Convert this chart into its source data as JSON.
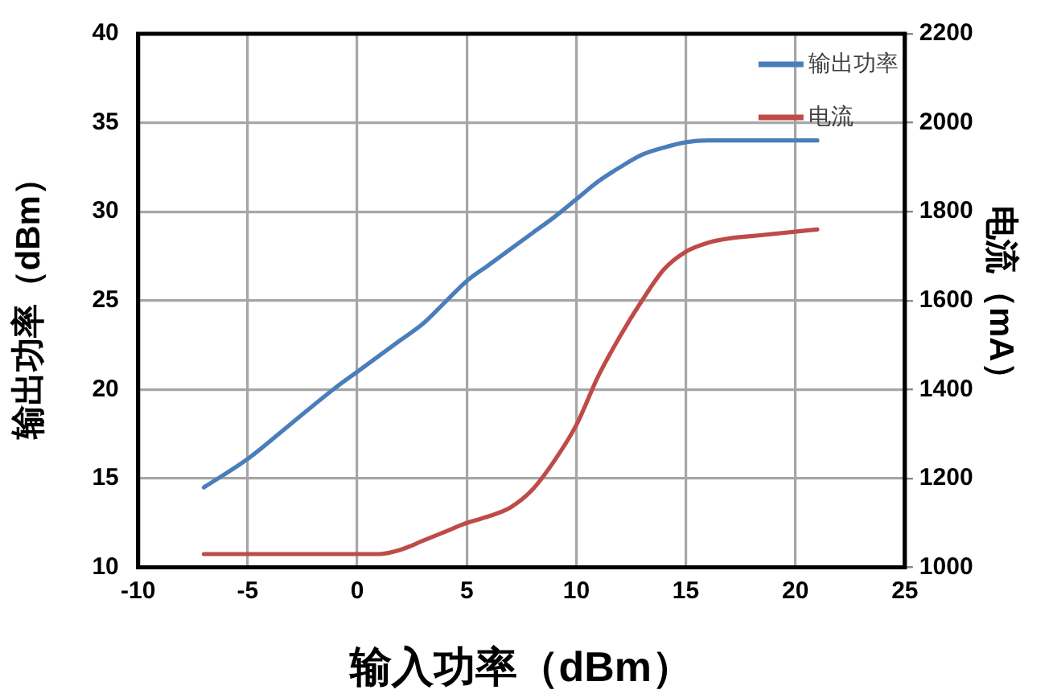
{
  "chart_data": {
    "type": "line",
    "xlabel": "输入功率（dBm）",
    "ylabel": "输出功率（dBm）",
    "y2label": "电流（mA）",
    "x": [
      -7,
      -5,
      -3,
      -1,
      0,
      1,
      2,
      3,
      4,
      5,
      6,
      7,
      8,
      9,
      10,
      11,
      12,
      13,
      14,
      15,
      16,
      17,
      18,
      19,
      20,
      21
    ],
    "series": [
      {
        "name": "输出功率",
        "color": "#4a7ebb",
        "values": [
          14.5,
          16.1,
          18.1,
          20.1,
          21.0,
          21.9,
          22.8,
          23.7,
          24.9,
          26.1,
          27.0,
          27.9,
          28.8,
          29.7,
          30.7,
          31.7,
          32.5,
          33.2,
          33.6,
          33.9,
          34.0,
          34.0,
          34.0,
          34.0,
          34.0,
          34.0
        ]
      },
      {
        "name": "电流",
        "color": "#be4b48",
        "axis": "y2",
        "values": [
          1030,
          1030,
          1030,
          1030,
          1030,
          1030,
          1040,
          1060,
          1080,
          1100,
          1115,
          1135,
          1175,
          1240,
          1320,
          1430,
          1520,
          1600,
          1670,
          1710,
          1730,
          1740,
          1745,
          1750,
          1755,
          1760
        ]
      }
    ],
    "xlim": [
      -10,
      25
    ],
    "xticks": [
      -10,
      -5,
      0,
      5,
      10,
      15,
      20,
      25
    ],
    "ylim": [
      10,
      40
    ],
    "yticks": [
      10,
      15,
      20,
      25,
      30,
      35,
      40
    ],
    "y2lim": [
      1000,
      2200
    ],
    "y2ticks": [
      1000,
      1200,
      1400,
      1600,
      1800,
      2000,
      2200
    ],
    "grid": true,
    "legend": "top right",
    "marker": "none",
    "line_style": "solid"
  }
}
